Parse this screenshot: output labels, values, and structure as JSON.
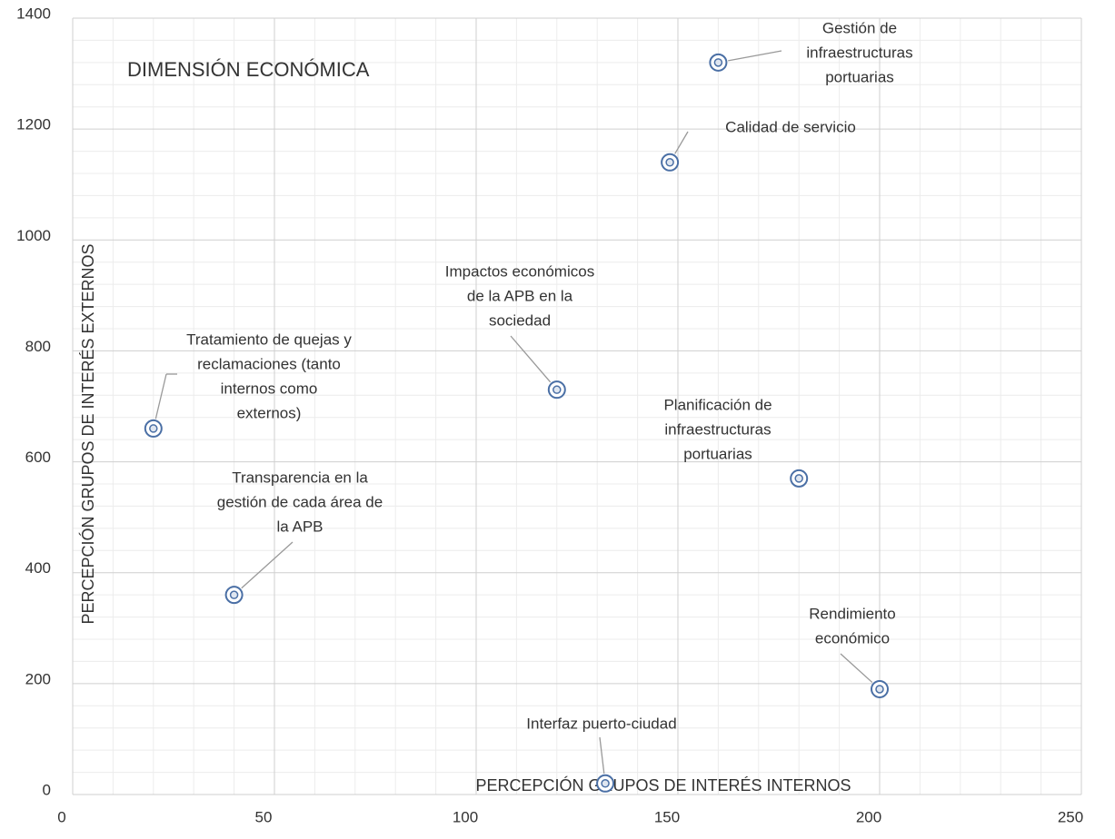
{
  "chart_data": {
    "type": "scatter",
    "title": "DIMENSIÓN ECONÓMICA",
    "x_label": "PERCEPCIÓN GRUPOS DE INTERÉS INTERNOS",
    "y_label": "PERCEPCIÓN GRUPOS DE INTERÉS EXTERNOS",
    "xlim": [
      0,
      250
    ],
    "ylim": [
      0,
      1400
    ],
    "xticks": [
      0,
      50,
      100,
      150,
      200,
      250
    ],
    "yticks": [
      0,
      200,
      400,
      600,
      800,
      1000,
      1200,
      1400
    ],
    "grid": true,
    "color": "#4a6fa5",
    "x": [
      160,
      148,
      120,
      20,
      180,
      40,
      200,
      132
    ],
    "values": [
      1320,
      1140,
      730,
      660,
      570,
      360,
      190,
      20
    ],
    "labels": [
      [
        "Gestión de",
        "infraestructuras",
        "portuarias"
      ],
      [
        "Calidad de servicio"
      ],
      [
        "Impactos económicos",
        "de la APB en la",
        "sociedad"
      ],
      [
        "Tratamiento de quejas y",
        "reclamaciones (tanto",
        "internos como",
        "externos)"
      ],
      [
        "Planificación de",
        "infraestructuras",
        "portuarias"
      ],
      [
        "Transparencia en la",
        "gestión de cada área de",
        "la APB"
      ],
      [
        "Rendimiento",
        "económico"
      ],
      [
        "Interfaz puerto-ciudad"
      ]
    ]
  }
}
